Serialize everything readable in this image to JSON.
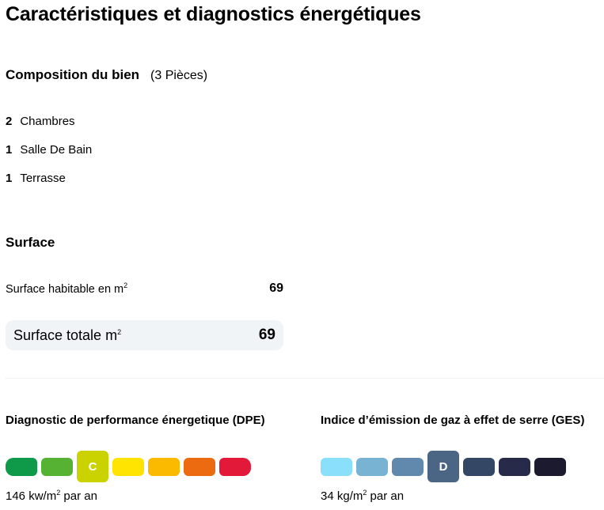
{
  "title": "Caractéristiques et diagnostics énergétiques",
  "composition": {
    "heading": "Composition du bien",
    "pieces": "(3 Pièces)",
    "rooms": [
      {
        "count": "2",
        "label": "Chambres"
      },
      {
        "count": "1",
        "label": "Salle De Bain"
      },
      {
        "count": "1",
        "label": "Terrasse"
      }
    ]
  },
  "surface": {
    "heading": "Surface",
    "habitable_label": "Surface habitable en m",
    "habitable_sup": "2",
    "habitable_value": "69",
    "total_label": "Surface totale m",
    "total_sup": "2",
    "total_value": "69"
  },
  "dpe": {
    "heading": "Diagnostic de performance énergetique (DPE)",
    "active_letter": "C",
    "colors": [
      "#0e9a49",
      "#56b233",
      "#cad300",
      "#fee400",
      "#fbb900",
      "#ec6b10",
      "#e3193a"
    ],
    "value_prefix": "146 kw/m",
    "value_sup": "2",
    "value_suffix": " par an"
  },
  "ges": {
    "heading": "Indice d’émission de gaz à effet de serre (GES)",
    "active_letter": "D",
    "colors": [
      "#8ae0fb",
      "#78b3d3",
      "#6089ad",
      "#4b6685",
      "#344865",
      "#272a49",
      "#1b1a2e"
    ],
    "value_prefix": "34 kg/m",
    "value_sup": "2",
    "value_suffix": " par an"
  }
}
